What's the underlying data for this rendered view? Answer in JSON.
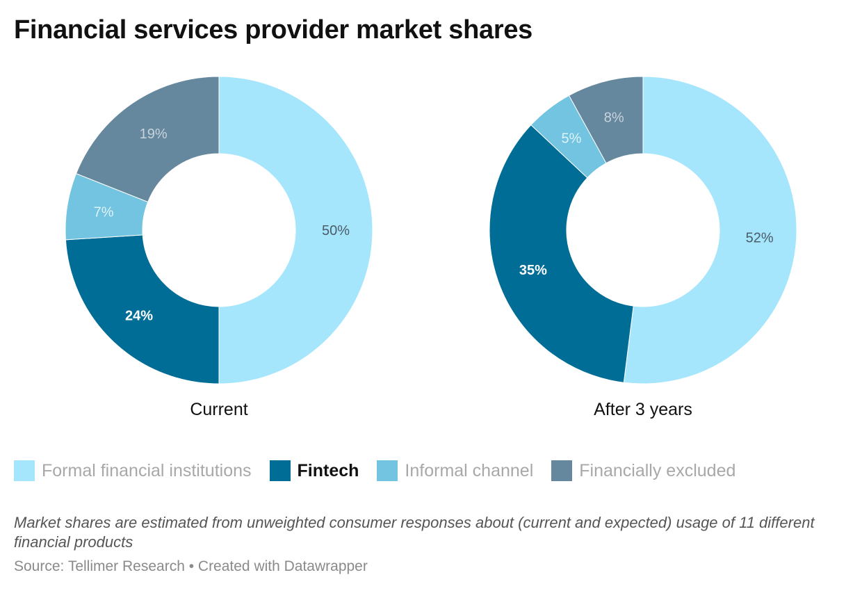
{
  "title": "Financial services provider market shares",
  "chart_data": {
    "type": "pie",
    "variant": "donut",
    "categories": [
      "Formal financial institutions",
      "Fintech",
      "Informal channel",
      "Financially excluded"
    ],
    "colors": [
      "#a6e6fc",
      "#006d96",
      "#72c4e0",
      "#66889f"
    ],
    "charts": [
      {
        "label": "Current",
        "values": [
          50,
          24,
          7,
          19
        ],
        "value_labels": [
          "50%",
          "24%",
          "7%",
          "19%"
        ]
      },
      {
        "label": "After 3 years",
        "values": [
          52,
          35,
          5,
          8
        ],
        "value_labels": [
          "52%",
          "35%",
          "5%",
          "8%"
        ]
      }
    ]
  },
  "legend": [
    {
      "label": "Formal financial institutions",
      "color": "#a6e6fc",
      "highlight": false
    },
    {
      "label": "Fintech",
      "color": "#006d96",
      "highlight": true
    },
    {
      "label": "Informal channel",
      "color": "#72c4e0",
      "highlight": false
    },
    {
      "label": "Financially excluded",
      "color": "#66889f",
      "highlight": false
    }
  ],
  "note": "Market shares are estimated from unweighted consumer responses about (current and expected) usage of 11 different financial products",
  "source": "Source: Tellimer Research • Created with Datawrapper"
}
